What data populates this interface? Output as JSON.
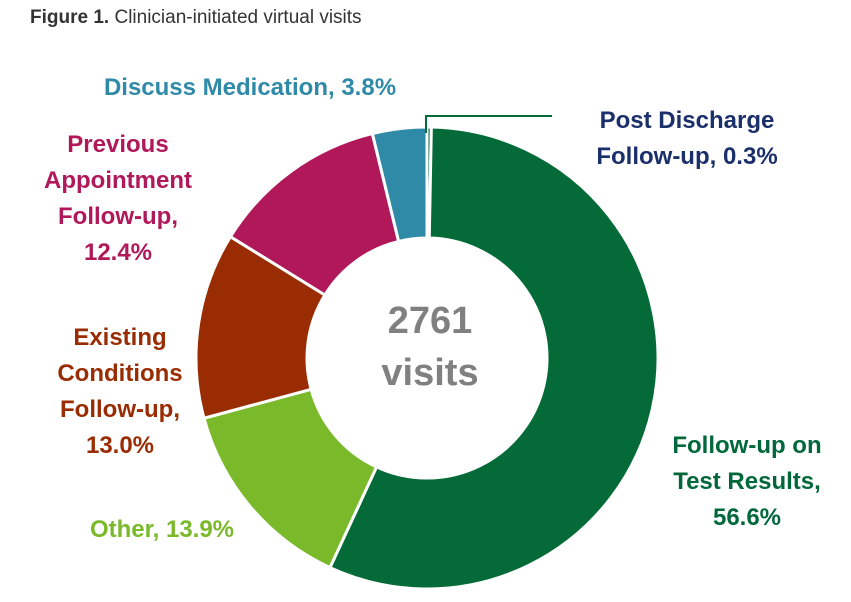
{
  "caption": {
    "label": "Figure 1.",
    "text": "Clinician-initiated virtual visits"
  },
  "chart_data": {
    "type": "pie",
    "title": "Clinician-initiated virtual visits",
    "center_label": [
      "2761",
      "visits"
    ],
    "total_visits": 2761,
    "unit": "%",
    "slices": [
      {
        "name": "Post Discharge Follow-up",
        "value": 0.3,
        "color": "#00683a",
        "label_lines": [
          "Post Discharge",
          "Follow-up, 0.3%"
        ]
      },
      {
        "name": "Follow-up on Test Results",
        "value": 56.6,
        "color": "#046a38",
        "label_lines": [
          "Follow-up on",
          "Test Results,",
          "56.6%"
        ]
      },
      {
        "name": "Other",
        "value": 13.9,
        "color": "#7ab929",
        "label_lines": [
          "Other, 13.9%"
        ]
      },
      {
        "name": "Existing Conditions Follow-up",
        "value": 13.0,
        "color": "#992c02",
        "label_lines": [
          "Existing",
          "Conditions",
          "Follow-up,",
          "13.0%"
        ]
      },
      {
        "name": "Previous Appointment Follow-up",
        "value": 12.4,
        "color": "#b0185a",
        "label_lines": [
          "Previous",
          "Appointment",
          "Follow-up,",
          "12.4%"
        ]
      },
      {
        "name": "Discuss Medication",
        "value": 3.8,
        "color": "#2f8aa8",
        "label_lines": [
          "Discuss Medication, 3.8%"
        ]
      }
    ],
    "label_colors": {
      "Post Discharge Follow-up": "#1b2f6b",
      "Follow-up on Test Results": "#00683a",
      "Other": "#7ab929",
      "Existing Conditions Follow-up": "#992c02",
      "Previous Appointment Follow-up": "#b0185a",
      "Discuss Medication": "#2f8aa8"
    }
  }
}
